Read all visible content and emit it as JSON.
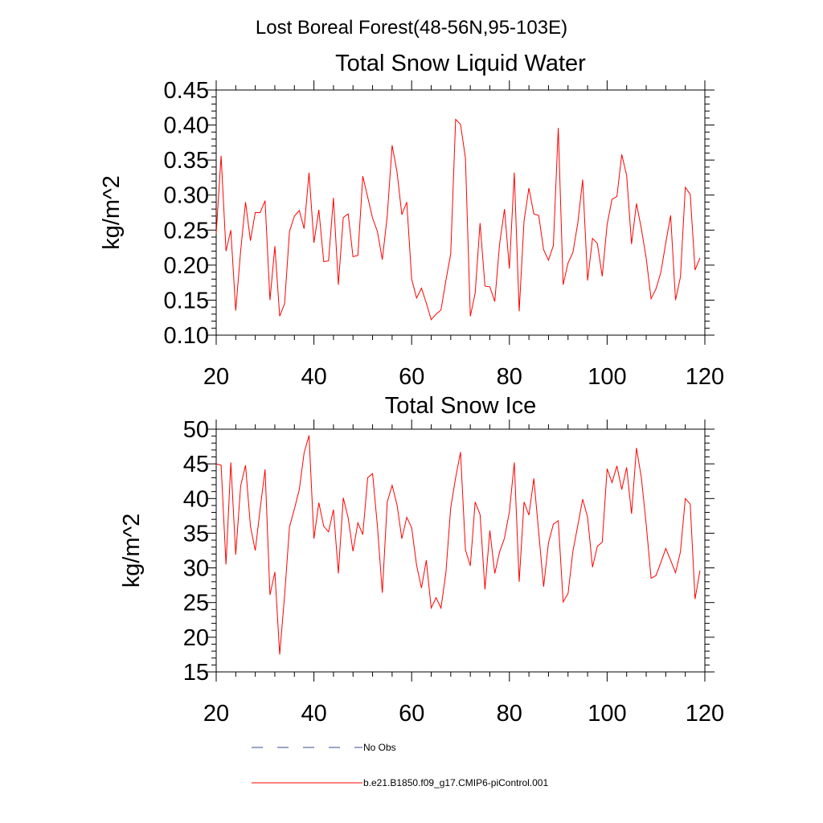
{
  "figure": {
    "title": "Lost Boreal Forest(48-56N,95-103E)"
  },
  "legend": [
    {
      "label": "No Obs",
      "color": "#3a4a8c",
      "style": "dashed"
    },
    {
      "label": "b.e21.B1850.f09_g17.CMIP6-piControl.001",
      "color": "#ff0000",
      "style": "solid"
    }
  ],
  "chart_data": [
    {
      "type": "line",
      "title": "Total Snow Liquid Water",
      "xlabel": "",
      "ylabel": "kg/m^2",
      "xlim": [
        20,
        120
      ],
      "ylim": [
        0.1,
        0.45
      ],
      "xticks": [
        "20",
        "40",
        "60",
        "80",
        "100",
        "120"
      ],
      "yticks": [
        "0.10",
        "0.15",
        "0.20",
        "0.25",
        "0.30",
        "0.35",
        "0.40",
        "0.45"
      ],
      "series": [
        {
          "name": "b.e21.B1850.f09_g17.CMIP6-piControl.001",
          "color": "#ff0000",
          "x": [
            20,
            21,
            22,
            23,
            24,
            25,
            26,
            27,
            28,
            29,
            30,
            31,
            32,
            33,
            34,
            35,
            36,
            37,
            38,
            39,
            40,
            41,
            42,
            43,
            44,
            45,
            46,
            47,
            48,
            49,
            50,
            51,
            52,
            53,
            54,
            55,
            56,
            57,
            58,
            59,
            60,
            61,
            62,
            63,
            64,
            65,
            66,
            67,
            68,
            69,
            70,
            71,
            72,
            73,
            74,
            75,
            76,
            77,
            78,
            79,
            80,
            81,
            82,
            83,
            84,
            85,
            86,
            87,
            88,
            89,
            90,
            91,
            92,
            93,
            94,
            95,
            96,
            97,
            98,
            99,
            100,
            101,
            102,
            103,
            104,
            105,
            106,
            107,
            108,
            109,
            110,
            111,
            112,
            113,
            114,
            115,
            116,
            117,
            118,
            119
          ],
          "values": [
            0.245,
            0.356,
            0.22,
            0.25,
            0.135,
            0.22,
            0.29,
            0.235,
            0.275,
            0.275,
            0.292,
            0.15,
            0.227,
            0.127,
            0.145,
            0.248,
            0.27,
            0.278,
            0.252,
            0.332,
            0.232,
            0.279,
            0.205,
            0.206,
            0.296,
            0.172,
            0.268,
            0.273,
            0.212,
            0.214,
            0.327,
            0.297,
            0.267,
            0.248,
            0.208,
            0.27,
            0.371,
            0.333,
            0.272,
            0.29,
            0.18,
            0.153,
            0.167,
            0.146,
            0.122,
            0.13,
            0.136,
            0.178,
            0.216,
            0.408,
            0.401,
            0.353,
            0.127,
            0.16,
            0.26,
            0.17,
            0.169,
            0.148,
            0.23,
            0.28,
            0.195,
            0.332,
            0.134,
            0.263,
            0.31,
            0.273,
            0.271,
            0.222,
            0.207,
            0.228,
            0.396,
            0.172,
            0.203,
            0.218,
            0.26,
            0.322,
            0.178,
            0.238,
            0.231,
            0.184,
            0.258,
            0.294,
            0.298,
            0.358,
            0.328,
            0.23,
            0.288,
            0.252,
            0.21,
            0.152,
            0.166,
            0.19,
            0.232,
            0.271,
            0.15,
            0.183,
            0.311,
            0.301,
            0.193,
            0.21
          ]
        }
      ]
    },
    {
      "type": "line",
      "title": "Total Snow Ice",
      "xlabel": "",
      "ylabel": "kg/m^2",
      "xlim": [
        20,
        120
      ],
      "ylim": [
        15,
        50
      ],
      "xticks": [
        "20",
        "40",
        "60",
        "80",
        "100",
        "120"
      ],
      "yticks": [
        "15",
        "20",
        "25",
        "30",
        "35",
        "40",
        "45",
        "50"
      ],
      "series": [
        {
          "name": "b.e21.B1850.f09_g17.CMIP6-piControl.001",
          "color": "#ff0000",
          "x": [
            20,
            21,
            22,
            23,
            24,
            25,
            26,
            27,
            28,
            29,
            30,
            31,
            32,
            33,
            34,
            35,
            36,
            37,
            38,
            39,
            40,
            41,
            42,
            43,
            44,
            45,
            46,
            47,
            48,
            49,
            50,
            51,
            52,
            53,
            54,
            55,
            56,
            57,
            58,
            59,
            60,
            61,
            62,
            63,
            64,
            65,
            66,
            67,
            68,
            69,
            70,
            71,
            72,
            73,
            74,
            75,
            76,
            77,
            78,
            79,
            80,
            81,
            82,
            83,
            84,
            85,
            86,
            87,
            88,
            89,
            90,
            91,
            92,
            93,
            94,
            95,
            96,
            97,
            98,
            99,
            100,
            101,
            102,
            103,
            104,
            105,
            106,
            107,
            108,
            109,
            110,
            111,
            112,
            113,
            114,
            115,
            116,
            117,
            118,
            119
          ],
          "values": [
            45.0,
            44.8,
            30.5,
            45.2,
            31.9,
            41.8,
            44.8,
            36.0,
            32.5,
            38.5,
            44.2,
            26.1,
            29.4,
            17.5,
            26.0,
            35.9,
            38.5,
            41.3,
            46.6,
            49.1,
            34.2,
            39.4,
            36.0,
            35.2,
            38.4,
            29.2,
            40.1,
            37.2,
            32.4,
            36.5,
            34.8,
            43.0,
            43.6,
            36.0,
            26.4,
            39.5,
            41.9,
            39.1,
            34.2,
            37.3,
            35.8,
            30.4,
            27.1,
            31.1,
            24.2,
            25.7,
            24.2,
            29.3,
            38.7,
            43.0,
            46.7,
            32.6,
            30.3,
            39.5,
            37.7,
            26.9,
            35.4,
            29.2,
            32.3,
            34.3,
            38.1,
            45.2,
            28.0,
            39.5,
            37.6,
            42.9,
            35.1,
            27.3,
            33.6,
            36.3,
            36.8,
            25.1,
            26.3,
            32.4,
            36.1,
            39.9,
            37.3,
            30.1,
            33.1,
            33.7,
            44.3,
            42.3,
            44.7,
            41.3,
            44.5,
            37.8,
            47.3,
            43.0,
            36.3,
            28.5,
            28.9,
            30.8,
            32.8,
            31.1,
            29.3,
            32.3,
            40.0,
            39.2,
            25.5,
            29.6
          ]
        }
      ]
    }
  ]
}
